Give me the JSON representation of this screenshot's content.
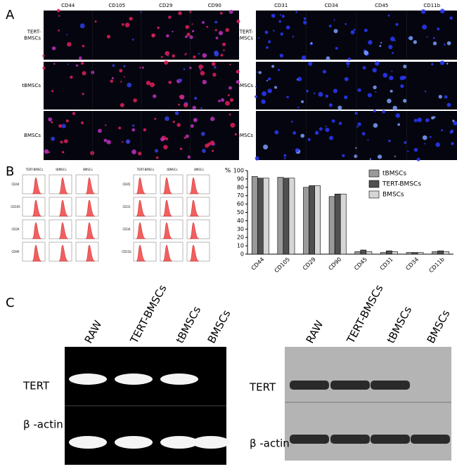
{
  "panel_labels": [
    "A",
    "B",
    "C"
  ],
  "panel_a": {
    "left": {
      "columns": [
        "CD44",
        "CD105",
        "CD29",
        "CD90"
      ],
      "rows": [
        [
          "TERT-",
          "BMSCs"
        ],
        [
          "tBMSCs"
        ],
        [
          "BMSCs"
        ]
      ]
    },
    "right": {
      "columns": [
        "CD31",
        "CD34",
        "CD45",
        "CD11b"
      ],
      "rows": [
        [
          "TERT-",
          "BMSCs"
        ],
        [
          "tBMSCs"
        ],
        [
          "BMSCs"
        ]
      ]
    }
  },
  "panel_b_flow": {
    "left": {
      "columns": [
        "TERT-BMSCs",
        "tBMSCs",
        "BMSCs"
      ],
      "rows": [
        "CD44",
        "CD105",
        "CD29",
        "CD90"
      ]
    },
    "right": {
      "columns": [
        "TERT-BMSCs",
        "tBMSCs",
        "BMSCs"
      ],
      "rows": [
        "CD45",
        "CD31",
        "CD34",
        "CD11b"
      ]
    }
  },
  "chart_data": {
    "type": "bar",
    "ylabel": "%",
    "categories": [
      "CD44",
      "CD105",
      "CD29",
      "CD90",
      "CD45",
      "CD31",
      "CD34",
      "CD11b"
    ],
    "series": [
      {
        "name": "tBMSCs",
        "color": "#9a9a9a",
        "values": [
          93,
          92,
          80,
          69,
          3,
          2,
          2,
          3
        ]
      },
      {
        "name": "TERT-BMSCs",
        "color": "#505050",
        "values": [
          91,
          91,
          82,
          72,
          5,
          4,
          2,
          4
        ]
      },
      {
        "name": "BMSCs",
        "color": "#d6d6d6",
        "values": [
          91,
          91,
          82,
          72,
          3,
          3,
          2,
          3
        ]
      }
    ],
    "ylim": [
      0,
      100
    ],
    "yticks": [
      0,
      10,
      20,
      30,
      40,
      50,
      60,
      70,
      80,
      90,
      100
    ],
    "legend": "upper right"
  },
  "panel_c": {
    "lanes": [
      "RAW",
      "TERT-BMSCs",
      "tBMSCs",
      "BMSCs"
    ],
    "rows": [
      "TERT",
      "β -actin"
    ]
  }
}
